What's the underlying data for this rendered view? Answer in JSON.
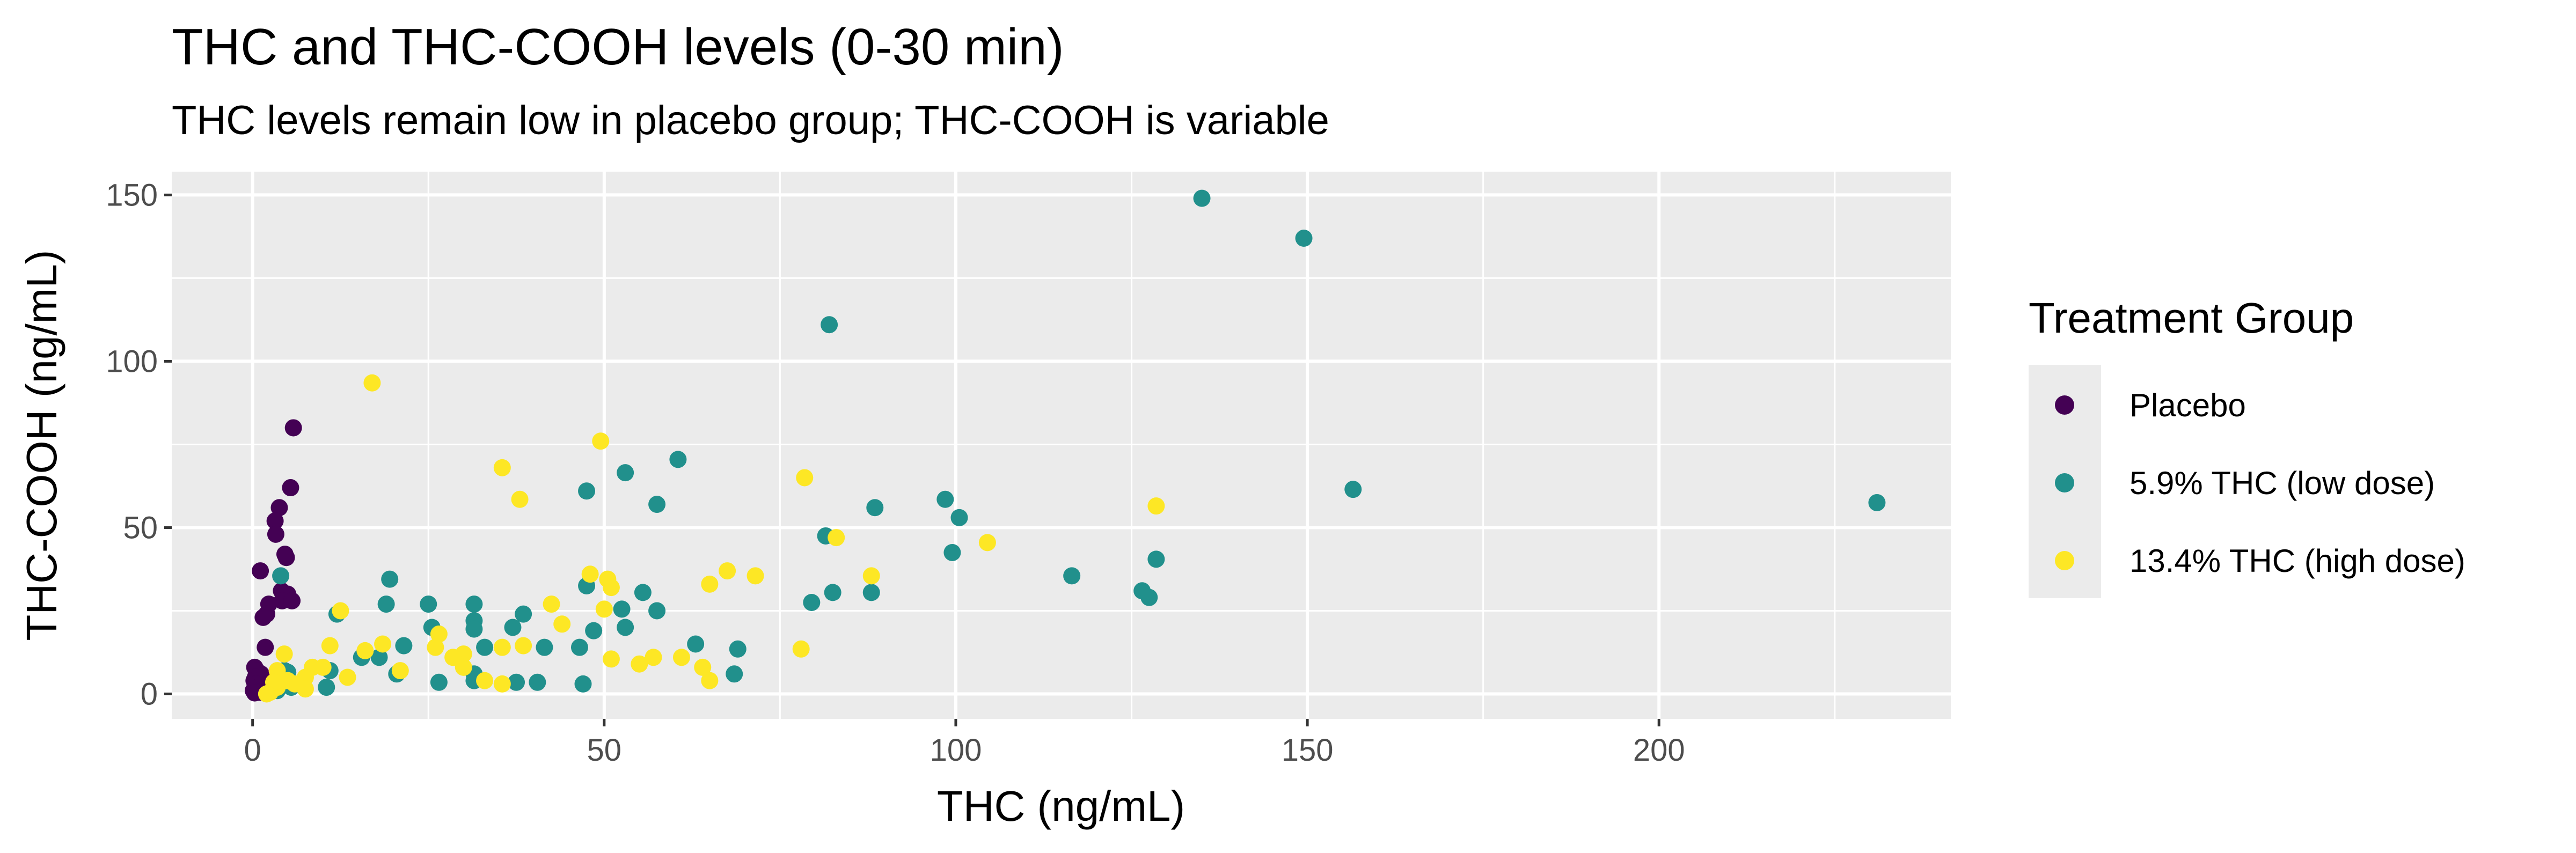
{
  "chart_data": {
    "type": "scatter",
    "title": "THC and THC-COOH levels (0-30 min)",
    "subtitle": "THC levels remain low in placebo group; THC-COOH is variable",
    "xlabel": "THC (ng/mL)",
    "ylabel": "THC-COOH (ng/mL)",
    "xlim": [
      -11.5,
      241.5
    ],
    "ylim": [
      -7.5,
      157
    ],
    "x_ticks": [
      0,
      50,
      100,
      150,
      200
    ],
    "y_ticks": [
      0,
      50,
      100,
      150
    ],
    "grid": true,
    "legend": {
      "title": "Treatment Group",
      "position": "right",
      "entries": [
        "Placebo",
        "5.9% THC (low dose)",
        "13.4% THC (high dose)"
      ]
    },
    "series": [
      {
        "name": "Placebo",
        "color": "#440154",
        "points": [
          [
            5.8,
            80
          ],
          [
            5.4,
            62
          ],
          [
            3.8,
            56
          ],
          [
            3.2,
            52
          ],
          [
            3.3,
            48
          ],
          [
            4.6,
            42
          ],
          [
            4.8,
            41
          ],
          [
            1.1,
            37
          ],
          [
            4.1,
            31
          ],
          [
            5.0,
            30
          ],
          [
            4.2,
            28
          ],
          [
            2.3,
            27
          ],
          [
            5.6,
            28
          ],
          [
            1.5,
            23
          ],
          [
            2.0,
            24
          ],
          [
            1.8,
            14
          ],
          [
            0.3,
            8
          ],
          [
            0.6,
            7
          ],
          [
            1.2,
            6
          ],
          [
            0.4,
            5
          ],
          [
            0.2,
            4
          ],
          [
            0.5,
            3
          ],
          [
            0.8,
            2
          ],
          [
            0.1,
            1
          ],
          [
            0.3,
            0.3
          ],
          [
            1.6,
            1.2
          ],
          [
            4.5,
            7
          ],
          [
            0.9,
            0.5
          ]
        ]
      },
      {
        "name": "5.9% THC (low dose)",
        "color": "#21908C",
        "points": [
          [
            135,
            149
          ],
          [
            149.5,
            137
          ],
          [
            82,
            111
          ],
          [
            156.5,
            61.5
          ],
          [
            231,
            57.5
          ],
          [
            60.5,
            70.5
          ],
          [
            53,
            66.5
          ],
          [
            47.5,
            61
          ],
          [
            57.5,
            57
          ],
          [
            88.5,
            56
          ],
          [
            98.5,
            58.5
          ],
          [
            100.5,
            53
          ],
          [
            81.5,
            47.5
          ],
          [
            99.5,
            42.5
          ],
          [
            128.5,
            40.5
          ],
          [
            116.5,
            35.5
          ],
          [
            126.5,
            31
          ],
          [
            127.5,
            29
          ],
          [
            79.5,
            27.5
          ],
          [
            82.5,
            30.5
          ],
          [
            88,
            30.5
          ],
          [
            57.5,
            25
          ],
          [
            55.5,
            30.5
          ],
          [
            52.5,
            25.5
          ],
          [
            47.5,
            32.5
          ],
          [
            53,
            20
          ],
          [
            48.5,
            19
          ],
          [
            46.5,
            14
          ],
          [
            41.5,
            14
          ],
          [
            38.5,
            24
          ],
          [
            37,
            20
          ],
          [
            31.5,
            27
          ],
          [
            31.5,
            22
          ],
          [
            31.5,
            19.5
          ],
          [
            33,
            14
          ],
          [
            25,
            27
          ],
          [
            25.5,
            20
          ],
          [
            21.5,
            14.5
          ],
          [
            19.5,
            34.5
          ],
          [
            18,
            11
          ],
          [
            19,
            27
          ],
          [
            15.5,
            11
          ],
          [
            12,
            24
          ],
          [
            11,
            7
          ],
          [
            10.5,
            2
          ],
          [
            20.5,
            6
          ],
          [
            26.5,
            3.5
          ],
          [
            31.5,
            4
          ],
          [
            31.5,
            6
          ],
          [
            37.5,
            3.5
          ],
          [
            40.5,
            3.5
          ],
          [
            47,
            3
          ],
          [
            63,
            15
          ],
          [
            68.5,
            6
          ],
          [
            69,
            13.5
          ],
          [
            4,
            35.5
          ],
          [
            4.5,
            7
          ],
          [
            4.5,
            4.5
          ],
          [
            5.5,
            2
          ],
          [
            3.5,
            1
          ],
          [
            5,
            6.5
          ]
        ]
      },
      {
        "name": "13.4% THC (high dose)",
        "color": "#FDE725",
        "points": [
          [
            17,
            93.5
          ],
          [
            49.5,
            76
          ],
          [
            35.5,
            68
          ],
          [
            38,
            58.5
          ],
          [
            78.5,
            65
          ],
          [
            128.5,
            56.5
          ],
          [
            83,
            47
          ],
          [
            104.5,
            45.5
          ],
          [
            67.5,
            37
          ],
          [
            71.5,
            35.5
          ],
          [
            65,
            33
          ],
          [
            48,
            36
          ],
          [
            50.5,
            34.5
          ],
          [
            51,
            32
          ],
          [
            88,
            35.5
          ],
          [
            42.5,
            27
          ],
          [
            44,
            21
          ],
          [
            35.5,
            14
          ],
          [
            38.5,
            14.5
          ],
          [
            30,
            12
          ],
          [
            30,
            8
          ],
          [
            26.5,
            18
          ],
          [
            18.5,
            15
          ],
          [
            16,
            13
          ],
          [
            12.5,
            25
          ],
          [
            13.5,
            5
          ],
          [
            11,
            14.5
          ],
          [
            10,
            8
          ],
          [
            8.5,
            8
          ],
          [
            7.5,
            5
          ],
          [
            6,
            3
          ],
          [
            4.5,
            12
          ],
          [
            5,
            4
          ],
          [
            3.5,
            2
          ],
          [
            2.5,
            0.5
          ],
          [
            7.5,
            1.5
          ],
          [
            21,
            7
          ],
          [
            26,
            14
          ],
          [
            28.5,
            11
          ],
          [
            33,
            4
          ],
          [
            35.5,
            3
          ],
          [
            51,
            10.5
          ],
          [
            55,
            9
          ],
          [
            57,
            11
          ],
          [
            61,
            11
          ],
          [
            64,
            8
          ],
          [
            65,
            4
          ],
          [
            78,
            13.5
          ],
          [
            50,
            25.5
          ],
          [
            3.5,
            7
          ],
          [
            3,
            3.5
          ],
          [
            2,
            0
          ]
        ]
      }
    ]
  }
}
